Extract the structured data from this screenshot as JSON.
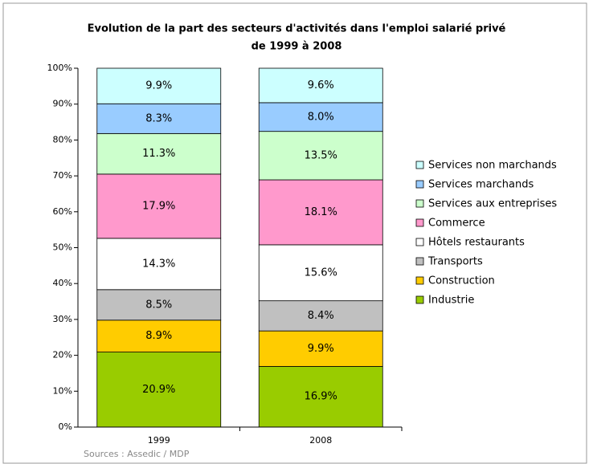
{
  "chart_data": {
    "type": "stacked_bar",
    "title": [
      "Evolution de la part des secteurs d'activités dans l'emploi salarié privé",
      "de 1999 à 2008"
    ],
    "categories": [
      "1999",
      "2008"
    ],
    "series": [
      {
        "name": "Industrie",
        "color": "#99cc00",
        "values": [
          20.9,
          16.9
        ],
        "value_labels": [
          "20.9%",
          "16.9%"
        ]
      },
      {
        "name": "Construction",
        "color": "#ffcc00",
        "values": [
          8.9,
          9.9
        ],
        "value_labels": [
          "8.9%",
          "9.9%"
        ]
      },
      {
        "name": "Transports",
        "color": "#c0c0c0",
        "values": [
          8.5,
          8.4
        ],
        "value_labels": [
          "8.5%",
          "8.4%"
        ]
      },
      {
        "name": "Hôtels restaurants",
        "color": "#ffffff",
        "values": [
          14.3,
          15.6
        ],
        "value_labels": [
          "14.3%",
          "15.6%"
        ]
      },
      {
        "name": "Commerce",
        "color": "#ff99cc",
        "values": [
          17.9,
          18.1
        ],
        "value_labels": [
          "17.9%",
          "18.1%"
        ]
      },
      {
        "name": "Services aux entreprises",
        "color": "#ccffcc",
        "values": [
          11.3,
          13.5
        ],
        "value_labels": [
          "11.3%",
          "13.5%"
        ]
      },
      {
        "name": "Services marchands",
        "color": "#99ccff",
        "values": [
          8.3,
          8.0
        ],
        "value_labels": [
          "8.3%",
          "8.0%"
        ]
      },
      {
        "name": "Services non marchands",
        "color": "#ccffff",
        "values": [
          9.9,
          9.6
        ],
        "value_labels": [
          "9.9%",
          "9.6%"
        ]
      }
    ],
    "ylim": [
      0,
      100
    ],
    "yticks": [
      {
        "value": 0,
        "label": "0%"
      },
      {
        "value": 10,
        "label": "10%"
      },
      {
        "value": 20,
        "label": "20%"
      },
      {
        "value": 30,
        "label": "30%"
      },
      {
        "value": 40,
        "label": "40%"
      },
      {
        "value": 50,
        "label": "50%"
      },
      {
        "value": 60,
        "label": "60%"
      },
      {
        "value": 70,
        "label": "70%"
      },
      {
        "value": 80,
        "label": "80%"
      },
      {
        "value": 90,
        "label": "90%"
      },
      {
        "value": 100,
        "label": "100%"
      }
    ],
    "legend": "right",
    "source": "Sources : Assedic / MDP"
  }
}
